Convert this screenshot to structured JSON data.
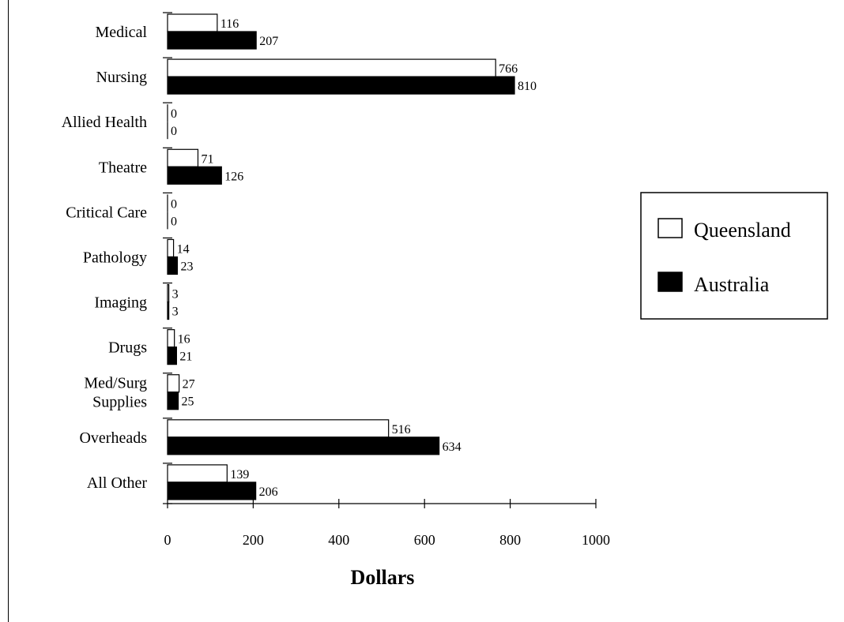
{
  "chart_data": {
    "type": "bar",
    "orientation": "horizontal",
    "categories": [
      [
        "Medical"
      ],
      [
        "Nursing"
      ],
      [
        "Allied Health"
      ],
      [
        "Theatre"
      ],
      [
        "Critical Care"
      ],
      [
        "Pathology"
      ],
      [
        "Imaging"
      ],
      [
        "Drugs"
      ],
      [
        "Med/Surg",
        "Supplies"
      ],
      [
        "Overheads"
      ],
      [
        "All Other"
      ]
    ],
    "series": [
      {
        "name": "Queensland",
        "color": "#ffffff",
        "values": [
          116,
          766,
          0,
          71,
          0,
          14,
          3,
          16,
          27,
          516,
          139
        ]
      },
      {
        "name": "Australia",
        "color": "#000000",
        "values": [
          207,
          810,
          0,
          126,
          0,
          23,
          3,
          21,
          25,
          634,
          206
        ]
      }
    ],
    "xlabel": "Dollars",
    "xlim": [
      0,
      1000
    ],
    "xticks": [
      0,
      200,
      400,
      600,
      800,
      1000
    ],
    "legend_position": "right",
    "grid": false
  }
}
